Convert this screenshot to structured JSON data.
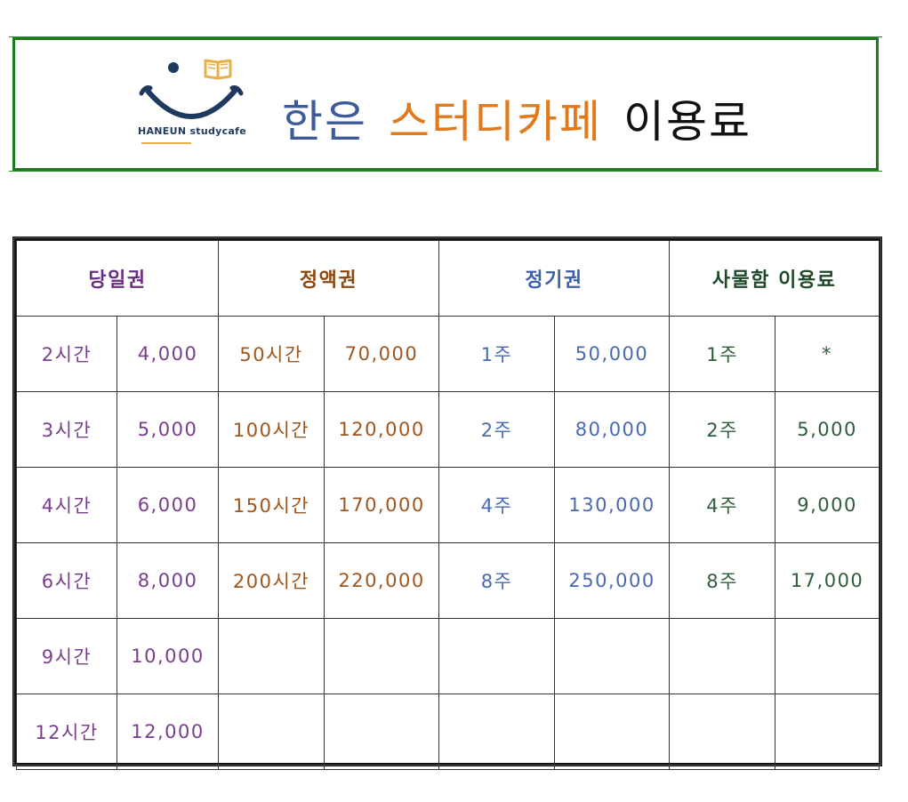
{
  "logo": {
    "text": "HANEUN studycafe",
    "icon": "book-icon",
    "accent_color": "#e8b04a",
    "face_color": "#1e3a5f"
  },
  "title": {
    "part1": "한은",
    "part2": "스터디카페",
    "part3": "이용료"
  },
  "table": {
    "headers": {
      "daily": "당일권",
      "amount": "정액권",
      "period": "정기권",
      "locker": "사물함 이용료"
    },
    "rows": [
      {
        "daily_time": "2시간",
        "daily_price": "4,000",
        "amount_time": "50시간",
        "amount_price": "70,000",
        "period_time": "1주",
        "period_price": "50,000",
        "locker_time": "1주",
        "locker_price": "*"
      },
      {
        "daily_time": "3시간",
        "daily_price": "5,000",
        "amount_time": "100시간",
        "amount_price": "120,000",
        "period_time": "2주",
        "period_price": "80,000",
        "locker_time": "2주",
        "locker_price": "5,000"
      },
      {
        "daily_time": "4시간",
        "daily_price": "6,000",
        "amount_time": "150시간",
        "amount_price": "170,000",
        "period_time": "4주",
        "period_price": "130,000",
        "locker_time": "4주",
        "locker_price": "9,000"
      },
      {
        "daily_time": "6시간",
        "daily_price": "8,000",
        "amount_time": "200시간",
        "amount_price": "220,000",
        "period_time": "8주",
        "period_price": "250,000",
        "locker_time": "8주",
        "locker_price": "17,000"
      },
      {
        "daily_time": "9시간",
        "daily_price": "10,000",
        "amount_time": "",
        "amount_price": "",
        "period_time": "",
        "period_price": "",
        "locker_time": "",
        "locker_price": ""
      },
      {
        "daily_time": "12시간",
        "daily_price": "12,000",
        "amount_time": "",
        "amount_price": "",
        "period_time": "",
        "period_price": "",
        "locker_time": "",
        "locker_price": ""
      }
    ]
  },
  "colors": {
    "border_green": "#1f7a1f",
    "daily": "#7a3f8c",
    "amount": "#a0561c",
    "period": "#4a6ab0",
    "locker": "#2f5d3a"
  }
}
